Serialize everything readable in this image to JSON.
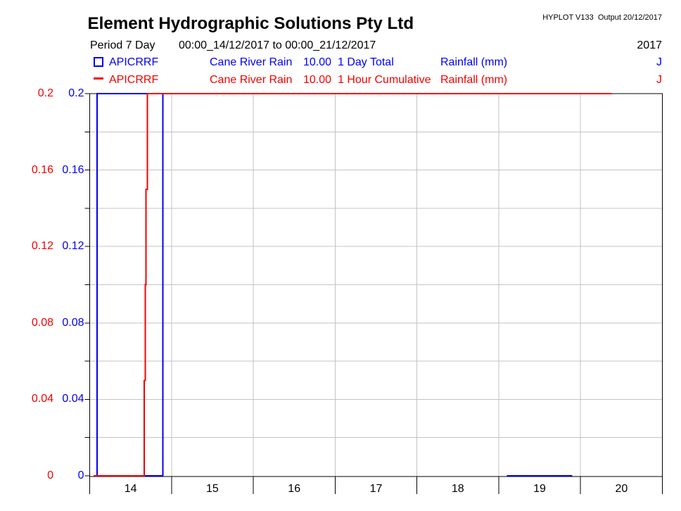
{
  "header": {
    "title": "Element Hydrographic Solutions Pty Ltd",
    "meta": "HYPLOT V133  Output 20/12/2017",
    "period_label": "Period 7 Day",
    "period_range": "00:00_14/12/2017 to 00:00_21/12/2017",
    "year": "2017"
  },
  "legend": [
    {
      "marker": "square-icon",
      "color": "#0000f5",
      "station": "APICRRF",
      "site_name": "Cane River Rain",
      "interval": "10.00",
      "trace_type": "1 Day Total",
      "units": "Rainfall (mm)",
      "quality": "J"
    },
    {
      "marker": "dash-icon",
      "color": "#f50000",
      "station": "APICRRF",
      "site_name": "Cane River Rain",
      "interval": "10.00",
      "trace_type": "1 Hour Cumulative",
      "units": "Rainfall (mm)",
      "quality": "J"
    }
  ],
  "chart_data": {
    "type": "line",
    "title": "",
    "xlabel": "",
    "ylabel": "Rainfall (mm)",
    "x_unit": "hours from 00:00 14/12/2017",
    "x_range_hours": [
      0,
      168
    ],
    "x_tick_interval_hours": 24,
    "x_tick_labels": [
      "14",
      "15",
      "16",
      "17",
      "18",
      "19",
      "20"
    ],
    "ylim": [
      0,
      0.2
    ],
    "y_major_labels": [
      "0",
      "0.04",
      "0.08",
      "0.12",
      "0.16",
      "0.2"
    ],
    "y_major_values": [
      0,
      0.04,
      0.08,
      0.12,
      0.16,
      0.2
    ],
    "y_minor_step": 0.02,
    "grid": true,
    "series": [
      {
        "name": "1 Day Total",
        "station": "APICRRF",
        "color": "#0000f5",
        "segments": [
          [
            [
              2.2,
              0
            ],
            [
              2.2,
              0.2
            ],
            [
              16.89,
              0.2
            ],
            [
              16.89,
              0.15
            ],
            [
              16.54,
              0.15
            ],
            [
              16.54,
              0.1
            ],
            [
              16.27,
              0.1
            ],
            [
              16.27,
              0.05
            ],
            [
              16.0,
              0.05
            ],
            [
              16.0,
              0
            ],
            [
              21.47,
              0
            ],
            [
              21.47,
              0.2
            ]
          ],
          [
            [
              122.4,
              0
            ],
            [
              141.6,
              0
            ]
          ]
        ]
      },
      {
        "name": "1 Hour Cumulative",
        "station": "APICRRF",
        "color": "#f50000",
        "segments": [
          [
            [
              1.1,
              0
            ],
            [
              16.0,
              0
            ],
            [
              16.0,
              0.05
            ],
            [
              16.27,
              0.05
            ],
            [
              16.27,
              0.1
            ],
            [
              16.54,
              0.1
            ],
            [
              16.54,
              0.15
            ],
            [
              16.89,
              0.15
            ],
            [
              16.89,
              0.2
            ],
            [
              153.1,
              0.2
            ]
          ]
        ]
      }
    ],
    "colors": {
      "grid": "#c3c3c3",
      "axis": "#000000"
    }
  }
}
